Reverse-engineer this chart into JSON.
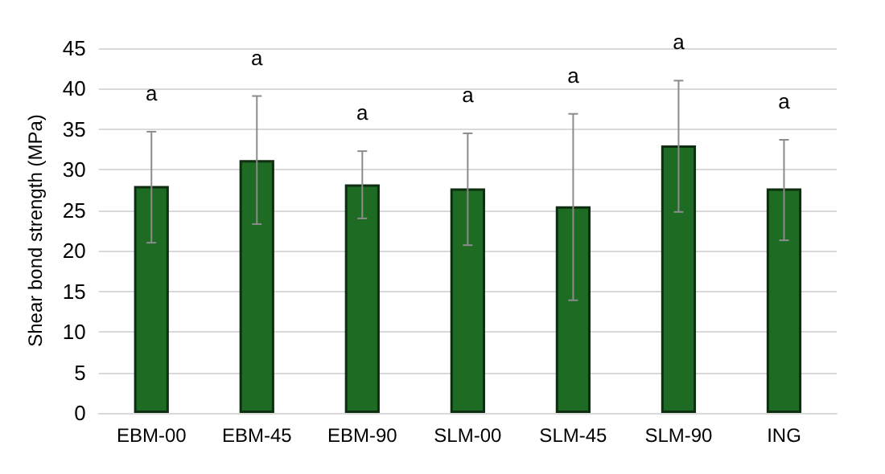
{
  "chart_data": {
    "type": "bar",
    "ylabel": "Shear bond strength (MPa)",
    "categories": [
      "EBM-00",
      "EBM-45",
      "EBM-90",
      "SLM-00",
      "SLM-45",
      "SLM-90",
      "ING"
    ],
    "values": [
      28,
      31.2,
      28.2,
      27.7,
      25.5,
      33,
      27.7
    ],
    "errors": [
      [
        21,
        34.7
      ],
      [
        23.3,
        39.1
      ],
      [
        24,
        32.3
      ],
      [
        20.7,
        34.5
      ],
      [
        13.9,
        36.9
      ],
      [
        24.8,
        41
      ],
      [
        21.3,
        33.7
      ]
    ],
    "color": "#1e6b23",
    "ylim": [
      0,
      45
    ],
    "yticks": [
      0,
      5,
      10,
      15,
      20,
      25,
      30,
      35,
      40,
      45
    ],
    "grid": "y",
    "annotations": [
      "a",
      "a",
      "a",
      "a",
      "a",
      "a",
      "a"
    ]
  }
}
